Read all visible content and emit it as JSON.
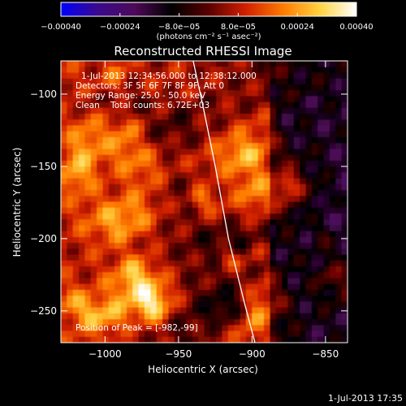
{
  "chart_data": {
    "type": "heatmap",
    "title": "Reconstructed RHESSI Image",
    "xlabel": "Heliocentric X (arcsec)",
    "ylabel": "Heliocentric Y (arcsec)",
    "xlim": [
      -1030,
      -835
    ],
    "ylim": [
      -272,
      -77
    ],
    "x_ticks": [
      {
        "value": -1000,
        "label": "−1000"
      },
      {
        "value": -950,
        "label": "−950"
      },
      {
        "value": -900,
        "label": "−900"
      },
      {
        "value": -850,
        "label": "−850"
      }
    ],
    "y_ticks": [
      {
        "value": -100,
        "label": "−100"
      },
      {
        "value": -150,
        "label": "−150"
      },
      {
        "value": -200,
        "label": "−200"
      },
      {
        "value": -250,
        "label": "−250"
      }
    ],
    "colorbar": {
      "range": [
        -0.0004,
        0.0004
      ],
      "unit_label": "(photons cm⁻² s⁻¹ asec⁻²)",
      "ticks": [
        {
          "value": -0.0004,
          "label": "−0.00040"
        },
        {
          "value": -0.00024,
          "label": "−0.00024"
        },
        {
          "value": -8e-05,
          "label": "−8.0e−05"
        },
        {
          "value": 8e-05,
          "label": "8.0e−05"
        },
        {
          "value": 0.00024,
          "label": "0.00024"
        },
        {
          "value": 0.0004,
          "label": "0.00040"
        }
      ],
      "colors": [
        "#0000ff",
        "#3a0a8c",
        "#4d0a57",
        "#000000",
        "#5a0000",
        "#d02000",
        "#ff7a00",
        "#ffd240",
        "#ffffff"
      ]
    },
    "limb_curve": [
      [
        -940,
        -77
      ],
      [
        -933,
        -110
      ],
      [
        -925,
        -150
      ],
      [
        -916,
        -200
      ],
      [
        -905,
        -245
      ],
      [
        -898,
        -272
      ]
    ],
    "annotations": {
      "time_range": "1-Jul-2013 12:34:56.000 to 12:38:12.000",
      "detectors": "Detectors: 3F 5F 6F 7F 8F 9F, Att 0",
      "energy": "Energy Range: 25.0 - 50.0 keV",
      "clean": "Clean    Total counts: 6.72E+03",
      "peak": "Position of Peak = [-982,-99]"
    },
    "footer_timestamp": "1-Jul-2013 17:35"
  }
}
